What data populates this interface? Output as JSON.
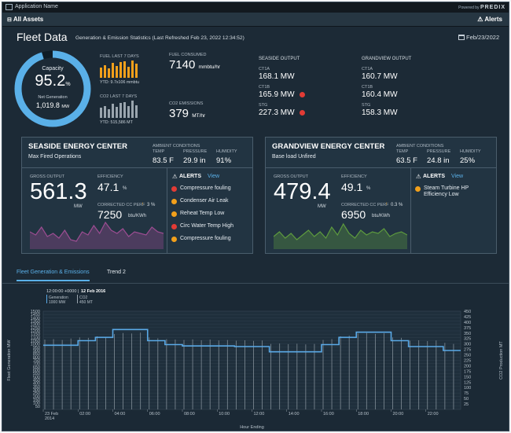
{
  "app": {
    "name": "Application Name",
    "powered_by": "Powered by",
    "brand": "PREDIX"
  },
  "nav": {
    "assets": "All Assets",
    "alerts": "Alerts"
  },
  "header": {
    "title": "Fleet Data",
    "subtitle": "Generation & Emission Statistics (Last Refreshed Feb 23, 2022 12:34:52)",
    "date": "Feb/23/2022"
  },
  "capacity": {
    "label": "Capacity",
    "value": "95.2",
    "unit": "%",
    "fraction": 0.952,
    "net_label": "Net Generation",
    "net_value": "1,019.8",
    "net_unit": "MW"
  },
  "fuel": {
    "label": "FUEL LAST 7 DAYS",
    "ytd": "YTD: 9.7x106 mmbtu",
    "bars": [
      0.6,
      0.75,
      0.55,
      0.85,
      0.7,
      0.9,
      0.95,
      0.65,
      1.0,
      0.8
    ]
  },
  "co2": {
    "label": "CO2 LAST 7 DAYS",
    "ytd": "YTD: 515,586 MT",
    "bars": [
      0.6,
      0.7,
      0.5,
      0.8,
      0.65,
      0.85,
      0.9,
      0.7,
      1.0,
      0.75
    ]
  },
  "fuel_consumed": {
    "label": "FUEL CONSUMED",
    "value": "7140",
    "unit": "mmbtu/hr"
  },
  "co2_emissions": {
    "label": "CO2 EMISSIONS",
    "value": "379",
    "unit": "MT/hr"
  },
  "seaside_output": {
    "title": "SEASIDE OUTPUT",
    "rows": [
      {
        "label": "CT1A",
        "value": "168.1 MW",
        "alert": false
      },
      {
        "label": "CT1B",
        "value": "165.9 MW",
        "alert": true
      },
      {
        "label": "STG",
        "value": "227.3 MW",
        "alert": true
      }
    ]
  },
  "grandview_output": {
    "title": "GRANDVIEW OUTPUT",
    "rows": [
      {
        "label": "CT1A",
        "value": "160.7 MW"
      },
      {
        "label": "CT1B",
        "value": "160.4 MW"
      },
      {
        "label": "STG",
        "value": "158.3 MW"
      }
    ]
  },
  "seaside": {
    "name": "SEASIDE ENERGY CENTER",
    "mode": "Max Fired Operations",
    "ambient": "AMBIENT CONDITIONS",
    "temp_label": "TEMP",
    "temp": "83.5 F",
    "pressure_label": "PRESSURE",
    "pressure": "29.9 in",
    "humidity_label": "HUMIDITY",
    "humidity": "91%",
    "gross_label": "GROSS OUTPUT",
    "gross": "561.3",
    "gross_unit": "MW",
    "eff_label": "EFFICIENCY",
    "eff": "47.1",
    "eff_unit": "%",
    "cc_label": "CORRECTED CC PERF",
    "cc_change": "3 %",
    "cc": "7250",
    "cc_unit": "btu/KWh",
    "alerts_title": "ALERTS",
    "alerts_view": "View",
    "alerts": [
      {
        "text": "Compressure fouling",
        "level": "red"
      },
      {
        "text": "Condenser Air Leak",
        "level": "orange"
      },
      {
        "text": "Reheat Temp Low",
        "level": "orange"
      },
      {
        "text": "Circ Water Temp High",
        "level": "red"
      },
      {
        "text": "Compressure fouling",
        "level": "orange"
      }
    ],
    "spark": [
      0.55,
      0.45,
      0.7,
      0.4,
      0.5,
      0.35,
      0.6,
      0.3,
      0.25,
      0.55,
      0.45,
      0.75,
      0.5,
      0.85,
      0.6,
      0.5,
      0.65,
      0.4,
      0.55,
      0.5,
      0.45,
      0.7,
      0.55,
      0.5
    ],
    "spark_color": "#9c4d92"
  },
  "grandview": {
    "name": "GRANDVIEW ENERGY CENTER",
    "mode": "Base load Unfired",
    "ambient": "AMBIENT CONDITIONS",
    "temp_label": "TEMP",
    "temp": "63.5 F",
    "pressure_label": "PRESSURE",
    "pressure": "24.8 in",
    "humidity_label": "HUMIDITY",
    "humidity": "25%",
    "gross_label": "GROSS OUTPUT",
    "gross": "479.4",
    "gross_unit": "MW",
    "eff_label": "EFFICIENCY",
    "eff": "49.1",
    "eff_unit": "%",
    "cc_label": "CORRECTED CC PERF",
    "cc_change": "0.3 %",
    "cc": "6950",
    "cc_unit": "btu/KWh",
    "alerts_title": "ALERTS",
    "alerts_view": "View",
    "alerts": [
      {
        "text": "Steam Turbine HP Efficiency Low",
        "level": "orange"
      }
    ],
    "spark": [
      0.4,
      0.55,
      0.35,
      0.5,
      0.3,
      0.45,
      0.6,
      0.4,
      0.55,
      0.35,
      0.7,
      0.45,
      0.8,
      0.5,
      0.35,
      0.6,
      0.45,
      0.55,
      0.5,
      0.65,
      0.4,
      0.5,
      0.55,
      0.45
    ],
    "spark_color": "#5d9a3e"
  },
  "tabs": [
    {
      "label": "Fleet Generation & Emissions",
      "active": true
    },
    {
      "label": "Trend 2",
      "active": false
    }
  ],
  "chart_data": {
    "type": "line",
    "tooltip_time": "12:00:00 +0000",
    "tooltip_date": "12 Feb 2016",
    "legend": [
      {
        "name": "Generation",
        "value": "1000 MW"
      },
      {
        "name": "CO2",
        "value": "450 MT"
      }
    ],
    "ylabel": "Fleet Generation MW",
    "y2label": "CO2 Production MT",
    "xlabel": "Hour Ending",
    "ylim": [
      0,
      1500
    ],
    "y2lim": [
      0,
      450
    ],
    "y_ticks": [
      0,
      50,
      100,
      150,
      200,
      250,
      300,
      350,
      400,
      450,
      500,
      550,
      600,
      650,
      700,
      750,
      800,
      850,
      900,
      950,
      1000,
      1050,
      1100,
      1150,
      1200,
      1250,
      1300,
      1350,
      1400,
      1450,
      1500
    ],
    "y_tick_labels": [
      "",
      "50",
      "100",
      "150",
      "200",
      "250",
      "300",
      "350",
      "400",
      "450",
      "500",
      "550",
      "600",
      "650",
      "700",
      "750",
      "800",
      "850",
      "900",
      "950",
      "1000",
      "1050",
      "1100",
      "1150",
      "1200",
      "1250",
      "1300",
      "1350",
      "1400",
      "1450",
      "1500"
    ],
    "y2_ticks": [
      0,
      25,
      50,
      75,
      100,
      125,
      150,
      175,
      200,
      225,
      250,
      275,
      300,
      325,
      350,
      375,
      400,
      425,
      450
    ],
    "y2_tick_labels": [
      "",
      "25",
      "50",
      "75",
      "100",
      "125",
      "150",
      "175",
      "200",
      "225",
      "250",
      "275",
      "300",
      "325",
      "350",
      "375",
      "400",
      "425",
      "450"
    ],
    "x_ticks": [
      {
        "hour": 0,
        "label": "23 Feb",
        "sub": "2014"
      },
      {
        "hour": 2,
        "label": "02:00"
      },
      {
        "hour": 4,
        "label": "04:00"
      },
      {
        "hour": 6,
        "label": "06:00"
      },
      {
        "hour": 8,
        "label": "08:00"
      },
      {
        "hour": 10,
        "label": "10:00"
      },
      {
        "hour": 12,
        "label": "12:00"
      },
      {
        "hour": 14,
        "label": "14:00"
      },
      {
        "hour": 16,
        "label": "16:00"
      },
      {
        "hour": 18,
        "label": "18:00"
      },
      {
        "hour": 20,
        "label": "20:00"
      },
      {
        "hour": 22,
        "label": "22:00"
      }
    ],
    "series": [
      {
        "name": "Generation",
        "x": [
          0,
          0.5,
          1,
          1.5,
          2,
          2.5,
          3,
          3.5,
          4,
          4.5,
          5,
          5.5,
          6,
          6.5,
          7,
          7.5,
          8,
          8.5,
          9,
          9.5,
          10,
          10.5,
          11,
          11.5,
          12,
          12.5,
          13,
          13.5,
          14,
          14.5,
          15,
          15.5,
          16,
          16.5,
          17,
          17.5,
          18,
          18.5,
          19,
          19.5,
          20,
          20.5,
          21,
          21.5,
          22,
          22.5,
          23,
          23.5
        ],
        "values": [
          980,
          980,
          980,
          980,
          1050,
          1050,
          1100,
          1100,
          1220,
          1220,
          1220,
          1220,
          1050,
          1050,
          990,
          990,
          970,
          970,
          970,
          970,
          970,
          970,
          960,
          960,
          960,
          960,
          880,
          880,
          880,
          880,
          880,
          880,
          990,
          990,
          1100,
          1100,
          1180,
          1180,
          1180,
          1180,
          1050,
          1050,
          960,
          960,
          960,
          960,
          900,
          900
        ]
      },
      {
        "name": "CO2",
        "x": [
          0,
          0.5,
          1,
          1.5,
          2,
          2.5,
          3,
          3.5,
          4,
          4.5,
          5,
          5.5,
          6,
          6.5,
          7,
          7.5,
          8,
          8.5,
          9,
          9.5,
          10,
          10.5,
          11,
          11.5,
          12,
          12.5,
          13,
          13.5,
          14,
          14.5,
          15,
          15.5,
          16,
          16.5,
          17,
          17.5,
          18,
          18.5,
          19,
          19.5,
          20,
          20.5,
          21,
          21.5,
          22,
          22.5,
          23,
          23.5
        ],
        "values": [
          320,
          322,
          318,
          325,
          330,
          328,
          335,
          332,
          345,
          350,
          348,
          352,
          330,
          326,
          322,
          320,
          318,
          321,
          317,
          320,
          316,
          318,
          315,
          317,
          314,
          316,
          300,
          302,
          299,
          301,
          298,
          300,
          318,
          322,
          335,
          338,
          348,
          350,
          346,
          349,
          330,
          328,
          315,
          317,
          313,
          316,
          305,
          300
        ]
      }
    ],
    "line_color": "#5aa9e6"
  }
}
